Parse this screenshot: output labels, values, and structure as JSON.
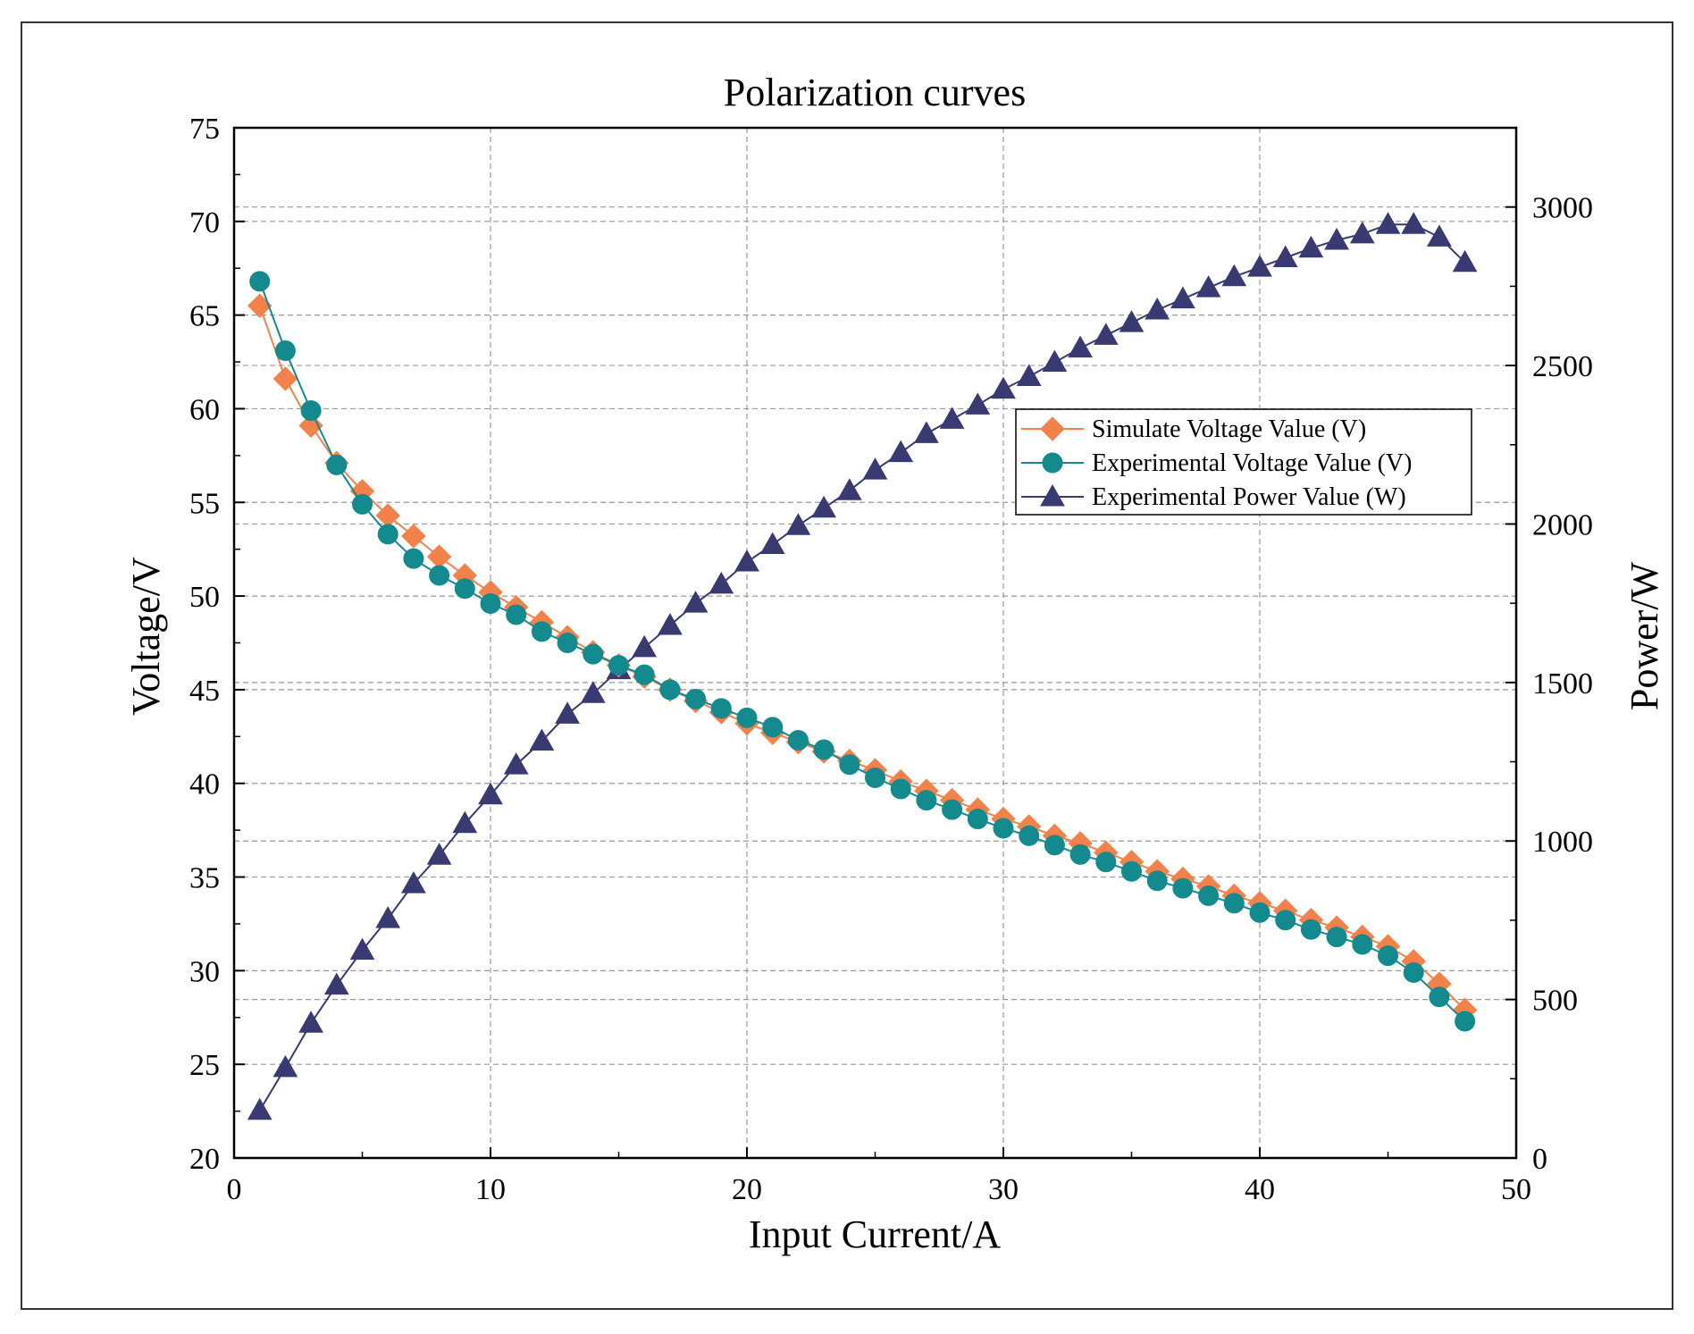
{
  "chart_data": {
    "type": "line",
    "title": "Polarization curves",
    "xlabel": "Input Current/A",
    "ylabel": "Voltage/V",
    "y2label": "Power/W",
    "xlim": [
      0,
      50
    ],
    "ylim": [
      20,
      75
    ],
    "y2lim": [
      0,
      3250
    ],
    "xticks": [
      0,
      10,
      20,
      30,
      40,
      50
    ],
    "yticks": [
      20,
      25,
      30,
      35,
      40,
      45,
      50,
      55,
      60,
      65,
      70,
      75
    ],
    "y2ticks": [
      0,
      500,
      1000,
      1500,
      2000,
      2500,
      3000
    ],
    "grid": true,
    "legend_position": "center-right",
    "x": [
      1,
      2,
      3,
      4,
      5,
      6,
      7,
      8,
      9,
      10,
      11,
      12,
      13,
      14,
      15,
      16,
      17,
      18,
      19,
      20,
      21,
      22,
      23,
      24,
      25,
      26,
      27,
      28,
      29,
      30,
      31,
      32,
      33,
      34,
      35,
      36,
      37,
      38,
      39,
      40,
      41,
      42,
      43,
      44,
      45,
      46,
      47,
      48
    ],
    "series": [
      {
        "name": "Simulate Voltage Value (V)",
        "axis": "left",
        "marker": "diamond",
        "color": "#F4814A",
        "values": [
          65.5,
          61.6,
          59.1,
          57.1,
          55.6,
          54.3,
          53.2,
          52.1,
          51.1,
          50.2,
          49.4,
          48.6,
          47.8,
          47.0,
          46.3,
          45.7,
          45.0,
          44.4,
          43.8,
          43.2,
          42.7,
          42.2,
          41.7,
          41.2,
          40.7,
          40.1,
          39.6,
          39.1,
          38.6,
          38.1,
          37.7,
          37.2,
          36.8,
          36.3,
          35.8,
          35.3,
          34.9,
          34.5,
          34.0,
          33.6,
          33.2,
          32.7,
          32.3,
          31.8,
          31.3,
          30.5,
          29.3,
          27.9
        ]
      },
      {
        "name": "Experimental Voltage Value (V)",
        "axis": "left",
        "marker": "circle",
        "color": "#138A8E",
        "values": [
          66.8,
          63.1,
          59.9,
          57.0,
          54.9,
          53.3,
          52.0,
          51.1,
          50.4,
          49.6,
          49.0,
          48.1,
          47.5,
          46.9,
          46.3,
          45.8,
          45.0,
          44.5,
          44.0,
          43.5,
          43.0,
          42.3,
          41.8,
          41.0,
          40.3,
          39.7,
          39.1,
          38.6,
          38.1,
          37.6,
          37.2,
          36.7,
          36.2,
          35.8,
          35.3,
          34.8,
          34.4,
          34.0,
          33.6,
          33.1,
          32.7,
          32.2,
          31.8,
          31.4,
          30.8,
          29.9,
          28.6,
          27.3
        ]
      },
      {
        "name": "Experimental Power Value (W)",
        "axis": "right",
        "marker": "triangle",
        "color": "#3A3A72",
        "values": [
          150,
          285,
          425,
          545,
          655,
          755,
          865,
          955,
          1055,
          1145,
          1240,
          1315,
          1400,
          1465,
          1540,
          1610,
          1680,
          1750,
          1810,
          1880,
          1935,
          1995,
          2050,
          2105,
          2170,
          2225,
          2285,
          2330,
          2375,
          2425,
          2465,
          2510,
          2555,
          2595,
          2635,
          2675,
          2710,
          2745,
          2780,
          2810,
          2840,
          2870,
          2895,
          2915,
          2945,
          2945,
          2905,
          2825
        ]
      }
    ]
  }
}
